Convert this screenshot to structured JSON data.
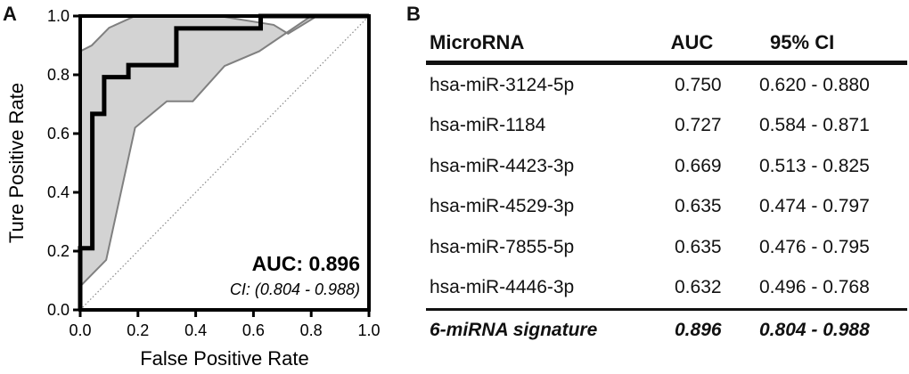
{
  "panel_a_letter": "A",
  "panel_b_letter": "B",
  "chart_data": {
    "type": "line",
    "xlabel": "False Positive Rate",
    "ylabel": "Ture Positive Rate",
    "xlim": [
      0,
      1
    ],
    "ylim": [
      0,
      1
    ],
    "xticks": [
      "0.0",
      "0.2",
      "0.4",
      "0.6",
      "0.8",
      "1.0"
    ],
    "yticks": [
      "0.0",
      "0.2",
      "0.4",
      "0.6",
      "0.8",
      "1.0"
    ],
    "roc_curve": {
      "x": [
        0,
        0,
        0.042,
        0.042,
        0.083,
        0.083,
        0.167,
        0.167,
        0.333,
        0.333,
        0.625,
        0.625,
        1.0
      ],
      "y": [
        0,
        0.21,
        0.21,
        0.667,
        0.667,
        0.792,
        0.792,
        0.833,
        0.833,
        0.958,
        0.958,
        1.0,
        1.0
      ]
    },
    "ci_band": {
      "upper": {
        "x": [
          0,
          0,
          0.04,
          0.1,
          0.19,
          0.2,
          0.3,
          0.48,
          0.67,
          0.72,
          0.82
        ],
        "y": [
          0.1,
          0.88,
          0.9,
          0.96,
          1.0,
          1.0,
          1.0,
          1.0,
          0.97,
          0.94,
          1.0
        ]
      },
      "lower": {
        "x": [
          0,
          0.09,
          0.19,
          0.3,
          0.39,
          0.5,
          0.62,
          0.8,
          1.0
        ],
        "y": [
          0.08,
          0.17,
          0.62,
          0.71,
          0.71,
          0.83,
          0.88,
          1.0,
          1.0
        ]
      }
    },
    "reference_line": true,
    "annotation_auc": "AUC: 0.896",
    "annotation_ci": "CI: (0.804 - 0.988)"
  },
  "table": {
    "headers": {
      "name": "MicroRNA",
      "auc": "AUC",
      "ci": "95% CI"
    },
    "rows": [
      {
        "name": "hsa-miR-3124-5p",
        "auc": "0.750",
        "ci": "0.620 - 0.880"
      },
      {
        "name": "hsa-miR-1184",
        "auc": "0.727",
        "ci": "0.584 - 0.871"
      },
      {
        "name": "hsa-miR-4423-3p",
        "auc": "0.669",
        "ci": "0.513 - 0.825"
      },
      {
        "name": "hsa-miR-4529-3p",
        "auc": "0.635",
        "ci": "0.474 - 0.797"
      },
      {
        "name": "hsa-miR-7855-5p",
        "auc": "0.635",
        "ci": "0.476 - 0.795"
      },
      {
        "name": "hsa-miR-4446-3p",
        "auc": "0.632",
        "ci": "0.496 - 0.768"
      }
    ],
    "signature": {
      "name": "6-miRNA signature",
      "auc": "0.896",
      "ci": "0.804 - 0.988"
    }
  }
}
